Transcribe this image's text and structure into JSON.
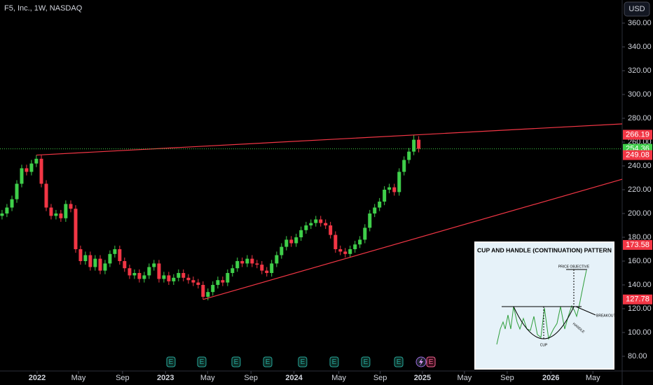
{
  "chart_data": {
    "type": "candlestick",
    "title": "F5, Inc., 1W, NASDAQ",
    "currency": "USD",
    "up_color": "#3fcf4a",
    "down_color": "#f23645",
    "x": [
      2021.727,
      2021.765,
      2021.804,
      2021.842,
      2021.88,
      2021.918,
      2021.956,
      2021.994,
      2022.033,
      2022.071,
      2022.109,
      2022.147,
      2022.185,
      2022.223,
      2022.262,
      2022.3,
      2022.338,
      2022.376,
      2022.414,
      2022.452,
      2022.491,
      2022.529,
      2022.567,
      2022.605,
      2022.643,
      2022.681,
      2022.72,
      2022.758,
      2022.796,
      2022.834,
      2022.872,
      2022.91,
      2022.949,
      2022.987,
      2023.025,
      2023.063,
      2023.101,
      2023.139,
      2023.178,
      2023.216,
      2023.254,
      2023.292,
      2023.33,
      2023.368,
      2023.407,
      2023.445,
      2023.483,
      2023.521,
      2023.559,
      2023.597,
      2023.636,
      2023.674,
      2023.712,
      2023.75,
      2023.788,
      2023.826,
      2023.865,
      2023.903,
      2023.941,
      2023.979,
      2024.017,
      2024.055,
      2024.094,
      2024.132,
      2024.17,
      2024.208,
      2024.246,
      2024.284,
      2024.323,
      2024.361,
      2024.399,
      2024.437,
      2024.475,
      2024.513,
      2024.552,
      2024.59,
      2024.628,
      2024.666,
      2024.704,
      2024.742,
      2024.781,
      2024.819,
      2024.857,
      2024.895,
      2024.933,
      2024.971
    ],
    "open": [
      198,
      200,
      205,
      212,
      225,
      238,
      235,
      242,
      246,
      225,
      205,
      198,
      200,
      196,
      208,
      204,
      170,
      160,
      165,
      155,
      162,
      152,
      158,
      166,
      170,
      160,
      154,
      148,
      150,
      145,
      148,
      155,
      158,
      145,
      148,
      143,
      146,
      150,
      146,
      144,
      142,
      140,
      130,
      134,
      140,
      144,
      142,
      150,
      154,
      160,
      158,
      162,
      158,
      157,
      152,
      150,
      158,
      165,
      172,
      178,
      175,
      180,
      186,
      190,
      192,
      195,
      192,
      190,
      182,
      170,
      168,
      166,
      170,
      174,
      178,
      188,
      200,
      205,
      210,
      220,
      222,
      218,
      235,
      245,
      252,
      262
    ],
    "high": [
      203,
      208,
      215,
      228,
      241,
      241,
      245,
      249.08,
      249,
      228,
      208,
      203,
      203,
      211,
      211,
      207,
      173,
      168,
      168,
      165,
      165,
      161,
      169,
      173,
      173,
      163,
      157,
      153,
      153,
      151,
      158,
      161,
      161,
      151,
      151,
      149,
      153,
      153,
      149,
      147,
      145,
      143,
      137,
      143,
      147,
      147,
      153,
      157,
      163,
      163,
      165,
      165,
      161,
      160,
      155,
      161,
      168,
      175,
      181,
      181,
      183,
      189,
      193,
      195,
      198,
      198,
      195,
      193,
      185,
      173,
      171,
      173,
      177,
      181,
      191,
      203,
      208,
      213,
      223,
      225,
      225,
      238,
      248,
      255,
      266.19,
      265
    ],
    "low": [
      195,
      197,
      202,
      209,
      222,
      232,
      232,
      239,
      222,
      202,
      195,
      195,
      193,
      193,
      201,
      167,
      157,
      157,
      152,
      152,
      149,
      149,
      155,
      163,
      157,
      151,
      145,
      145,
      142,
      142,
      145,
      152,
      142,
      142,
      140,
      140,
      143,
      143,
      141,
      139,
      137,
      127.78,
      127,
      131,
      137,
      139,
      139,
      147,
      151,
      155,
      155,
      155,
      154,
      149,
      147,
      147,
      155,
      162,
      169,
      172,
      172,
      177,
      183,
      187,
      189,
      189,
      187,
      179,
      167,
      165,
      163,
      163,
      167,
      171,
      175,
      185,
      197,
      202,
      207,
      217,
      215,
      215,
      232,
      242,
      249,
      251.36
    ],
    "close": [
      200,
      205,
      212,
      225,
      238,
      235,
      242,
      246,
      225,
      205,
      198,
      200,
      196,
      208,
      204,
      170,
      160,
      165,
      155,
      162,
      152,
      158,
      166,
      170,
      160,
      154,
      148,
      150,
      145,
      148,
      155,
      158,
      145,
      148,
      143,
      146,
      150,
      146,
      144,
      142,
      140,
      130,
      134,
      140,
      144,
      142,
      150,
      154,
      160,
      158,
      162,
      158,
      157,
      152,
      150,
      158,
      165,
      172,
      178,
      175,
      180,
      186,
      190,
      192,
      195,
      192,
      190,
      182,
      170,
      168,
      166,
      170,
      174,
      178,
      188,
      200,
      205,
      210,
      220,
      222,
      218,
      235,
      245,
      252,
      262,
      254.36
    ],
    "xlim": [
      2021.711,
      2026.555
    ],
    "ylim": [
      67.65,
      379.41
    ],
    "yticks": [
      {
        "value": 360,
        "label": "360.00"
      },
      {
        "value": 340,
        "label": "340.00"
      },
      {
        "value": 320,
        "label": "320.00"
      },
      {
        "value": 300,
        "label": "300.00"
      },
      {
        "value": 280,
        "label": "280.00"
      },
      {
        "value": 260,
        "label": "260.00"
      },
      {
        "value": 240,
        "label": "240.00"
      },
      {
        "value": 220,
        "label": "220.00"
      },
      {
        "value": 200,
        "label": "200.00"
      },
      {
        "value": 180,
        "label": "180.00"
      },
      {
        "value": 160,
        "label": "160.00"
      },
      {
        "value": 140,
        "label": "140.00"
      },
      {
        "value": 120,
        "label": "120.00"
      },
      {
        "value": 100,
        "label": "100.00"
      },
      {
        "value": 80,
        "label": "80.00"
      }
    ],
    "xticks": [
      {
        "value": 2022,
        "label": "2022"
      },
      {
        "value": 2022.322,
        "label": "May"
      },
      {
        "value": 2022.665,
        "label": "Sep"
      },
      {
        "value": 2023,
        "label": "2023"
      },
      {
        "value": 2023.327,
        "label": "May"
      },
      {
        "value": 2023.665,
        "label": "Sep"
      },
      {
        "value": 2024,
        "label": "2024"
      },
      {
        "value": 2024.349,
        "label": "May"
      },
      {
        "value": 2024.671,
        "label": "Sep"
      },
      {
        "value": 2025,
        "label": "2025"
      },
      {
        "value": 2025.327,
        "label": "May"
      },
      {
        "value": 2025.66,
        "label": "Sep"
      },
      {
        "value": 2026,
        "label": "2026"
      },
      {
        "value": 2026.327,
        "label": "May"
      }
    ],
    "trendlines": [
      {
        "color": "#f23645",
        "start": [
          2021.994,
          249.08
        ],
        "end": [
          2026.555,
          275.3
        ]
      },
      {
        "color": "#f23645",
        "start": [
          2023.292,
          127.78
        ],
        "end": [
          2026.555,
          228.8
        ]
      }
    ],
    "price_labels": [
      {
        "value": 266.19,
        "color": "#f23645"
      },
      {
        "value": 254.36,
        "color": "#3fcf4a",
        "dotted": true
      },
      {
        "value": 249.08,
        "color": "#f23645"
      },
      {
        "value": 173.58,
        "color": "#f23645"
      },
      {
        "value": 127.78,
        "color": "#f23645"
      }
    ],
    "events": [
      {
        "x": 2023.042,
        "label": "E"
      },
      {
        "x": 2023.282,
        "label": "E"
      },
      {
        "x": 2023.549,
        "label": "E"
      },
      {
        "x": 2023.795,
        "label": "E"
      },
      {
        "x": 2024.067,
        "label": "E"
      },
      {
        "x": 2024.313,
        "label": "E"
      },
      {
        "x": 2024.558,
        "label": "E"
      },
      {
        "x": 2024.815,
        "label": "E"
      },
      {
        "x": 2025.066,
        "label": "E"
      }
    ]
  },
  "inset": {
    "title": "CUP AND HANDLE (CONTINUATION) PATTERN",
    "price_objective": "PRICE OBJECTIVE",
    "breakout": "BREAKOUT",
    "handle": "HANDLE",
    "cup": "CUP"
  }
}
